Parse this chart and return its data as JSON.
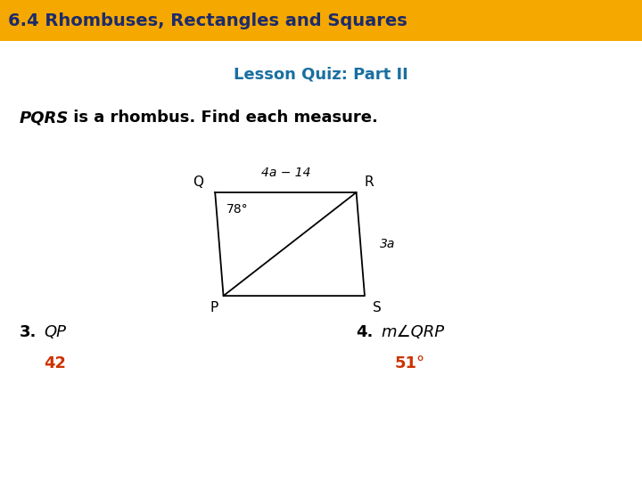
{
  "title_bg_color": "#F5A800",
  "title_text": "6.4 Rhombuses, Rectangles and Squares",
  "title_text_color": "#1C2B6B",
  "subtitle_text": "Lesson Quiz: Part II",
  "subtitle_color": "#1A6FA0",
  "problem_text_bold": "PQRS",
  "problem_text_rest": " is a rhombus. Find each measure.",
  "problem_color": "#000000",
  "answer_color": "#CC3300",
  "bg_color": "#FFFFFF",
  "Q": [
    0.355,
    0.595
  ],
  "R": [
    0.565,
    0.595
  ],
  "S": [
    0.575,
    0.375
  ],
  "P": [
    0.355,
    0.375
  ],
  "label_78": "78°",
  "label_4a14": "4a − 14",
  "label_3a": "3a"
}
